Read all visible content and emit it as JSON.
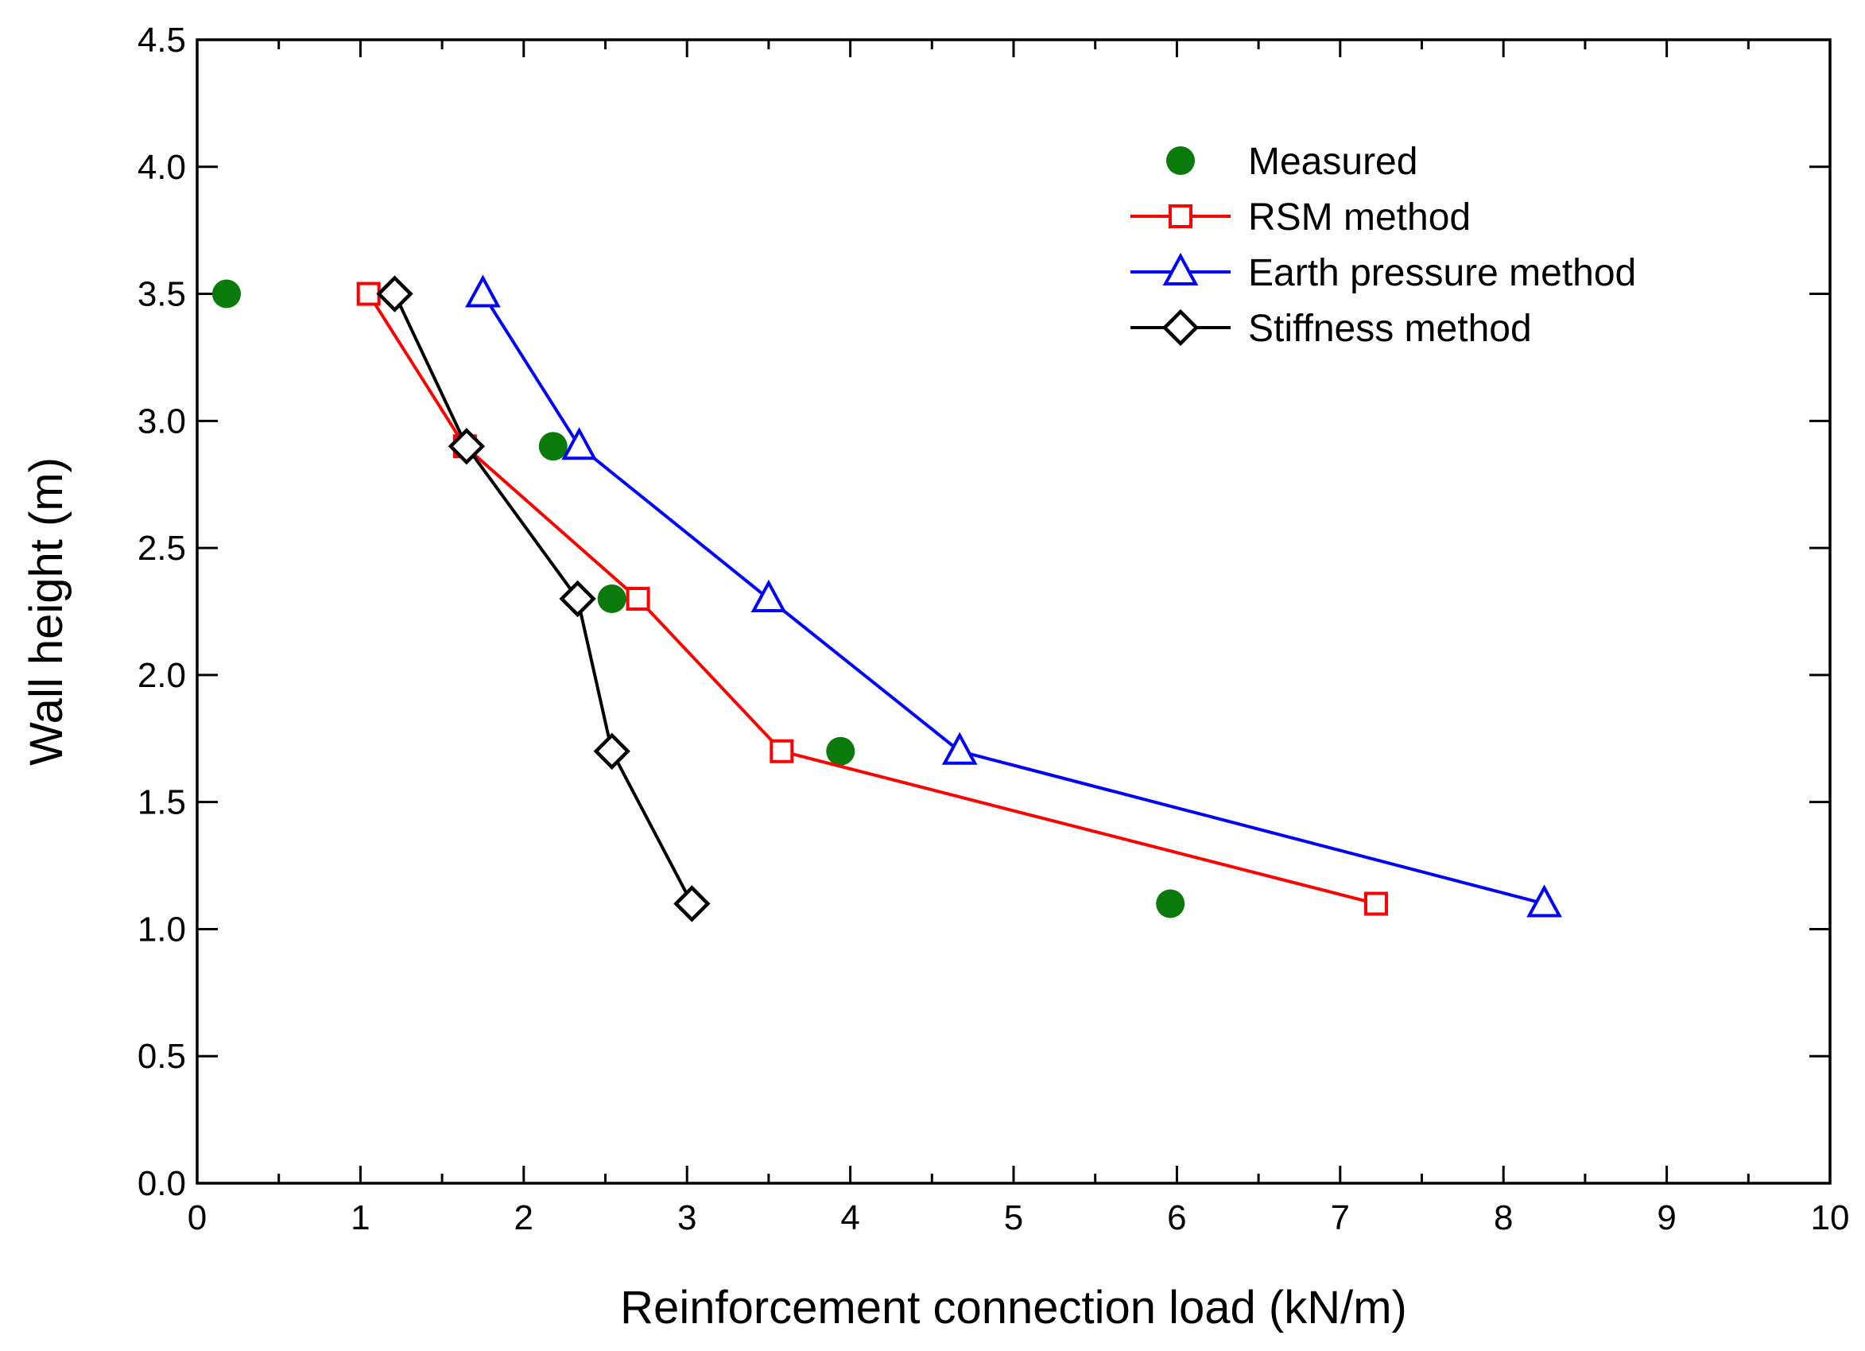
{
  "chart_data": {
    "type": "line",
    "title": "",
    "xlabel": "Reinforcement connection load (kN/m)",
    "ylabel": "Wall height (m)",
    "xlim": [
      0,
      10
    ],
    "ylim": [
      0,
      4.5
    ],
    "x_ticks": [
      "0",
      "1",
      "2",
      "3",
      "4",
      "5",
      "6",
      "7",
      "8",
      "9",
      "10"
    ],
    "y_ticks": [
      "0.0",
      "0.5",
      "1.0",
      "1.5",
      "2.0",
      "2.5",
      "3.0",
      "3.5",
      "4.0",
      "4.5"
    ],
    "grid": false,
    "legend_position": "top-right",
    "series": [
      {
        "name": "Measured",
        "style": "markers",
        "marker": "filled-circle",
        "color": "#0a7a0a",
        "points": [
          [
            0.18,
            3.5
          ],
          [
            2.18,
            2.9
          ],
          [
            2.54,
            2.3
          ],
          [
            3.94,
            1.7
          ],
          [
            5.96,
            1.1
          ]
        ]
      },
      {
        "name": "RSM method",
        "style": "line+markers",
        "marker": "open-square",
        "color": "#ff0000",
        "points": [
          [
            1.05,
            3.5
          ],
          [
            1.64,
            2.9
          ],
          [
            2.7,
            2.3
          ],
          [
            3.58,
            1.7
          ],
          [
            7.22,
            1.1
          ]
        ]
      },
      {
        "name": "Earth pressure method",
        "style": "line+markers",
        "marker": "open-triangle",
        "color": "#0000ff",
        "points": [
          [
            1.75,
            3.5
          ],
          [
            2.34,
            2.9
          ],
          [
            3.5,
            2.3
          ],
          [
            4.67,
            1.7
          ],
          [
            8.25,
            1.1
          ]
        ]
      },
      {
        "name": "Stiffness method",
        "style": "line+markers",
        "marker": "open-diamond",
        "color": "#000000",
        "points": [
          [
            1.21,
            3.5
          ],
          [
            1.65,
            2.9
          ],
          [
            2.33,
            2.3
          ],
          [
            2.54,
            1.7
          ],
          [
            3.03,
            1.1
          ]
        ]
      }
    ]
  }
}
